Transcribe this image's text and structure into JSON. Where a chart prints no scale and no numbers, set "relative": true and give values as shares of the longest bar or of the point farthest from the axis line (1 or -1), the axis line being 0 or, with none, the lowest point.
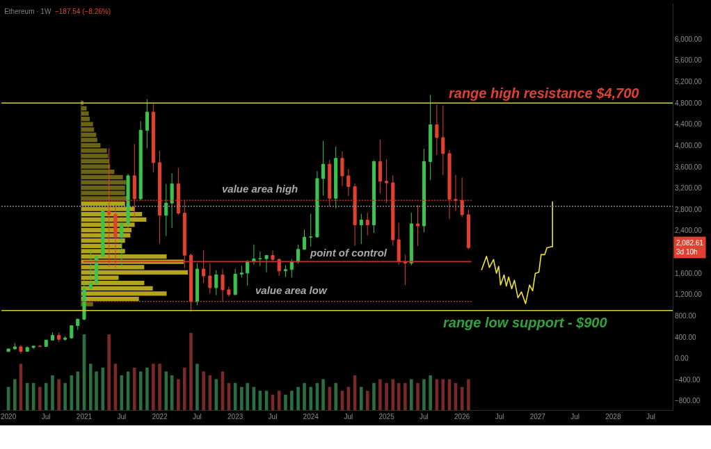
{
  "chart_data": [
    {
      "type": "candlestick",
      "title": "Ethereum · 1W",
      "subtitle": "−187.54 (−8.26%)",
      "x": [
        "2020-01",
        "2020-02",
        "2020-03",
        "2020-04",
        "2020-05",
        "2020-06",
        "2020-07",
        "2020-08",
        "2020-09",
        "2020-10",
        "2020-11",
        "2020-12",
        "2021-01",
        "2021-02",
        "2021-03",
        "2021-04",
        "2021-05",
        "2021-06",
        "2021-07",
        "2021-08",
        "2021-09",
        "2021-10",
        "2021-11",
        "2021-12",
        "2022-01",
        "2022-02",
        "2022-03",
        "2022-04",
        "2022-05",
        "2022-06",
        "2022-07",
        "2022-08",
        "2022-09",
        "2022-10",
        "2022-11",
        "2022-12",
        "2023-01",
        "2023-02",
        "2023-03",
        "2023-04",
        "2023-05",
        "2023-06",
        "2023-07",
        "2023-08",
        "2023-09",
        "2023-10",
        "2023-11",
        "2023-12",
        "2024-01",
        "2024-02",
        "2024-03",
        "2024-04",
        "2024-05",
        "2024-06",
        "2024-07",
        "2024-08",
        "2024-09",
        "2024-10",
        "2024-11",
        "2024-12",
        "2025-01",
        "2025-02",
        "2025-03",
        "2025-04",
        "2025-05",
        "2025-06",
        "2025-07",
        "2025-08",
        "2025-09",
        "2025-10",
        "2025-11",
        "2025-12",
        "2026-01",
        "2026-02"
      ],
      "ohlc": [
        [
          129,
          180,
          127,
          179
        ],
        [
          179,
          288,
          176,
          218
        ],
        [
          218,
          253,
          90,
          133
        ],
        [
          133,
          227,
          130,
          206
        ],
        [
          206,
          247,
          176,
          231
        ],
        [
          231,
          253,
          216,
          226
        ],
        [
          226,
          349,
          223,
          346
        ],
        [
          346,
          488,
          335,
          434
        ],
        [
          434,
          488,
          308,
          359
        ],
        [
          359,
          420,
          334,
          386
        ],
        [
          386,
          622,
          370,
          616
        ],
        [
          616,
          750,
          535,
          737
        ],
        [
          737,
          1476,
          715,
          1314
        ],
        [
          1314,
          2040,
          1275,
          1418
        ],
        [
          1418,
          1944,
          1400,
          1918
        ],
        [
          1918,
          2797,
          1900,
          2773
        ],
        [
          2773,
          3950,
          1720,
          2706
        ],
        [
          2706,
          2890,
          1700,
          2275
        ],
        [
          2275,
          2551,
          1719,
          2536
        ],
        [
          2536,
          3470,
          2450,
          3433
        ],
        [
          3433,
          4030,
          2652,
          3000
        ],
        [
          3000,
          4460,
          2970,
          4288
        ],
        [
          4288,
          4870,
          3950,
          4630
        ],
        [
          4630,
          4780,
          3500,
          3680
        ],
        [
          3680,
          3900,
          2160,
          2690
        ],
        [
          2690,
          3280,
          2300,
          2920
        ],
        [
          2920,
          3480,
          2450,
          3280
        ],
        [
          3280,
          3580,
          2700,
          2730
        ],
        [
          2730,
          2960,
          1700,
          1940
        ],
        [
          1940,
          1970,
          880,
          1070
        ],
        [
          1070,
          1790,
          1000,
          1680
        ],
        [
          1680,
          2030,
          1420,
          1550
        ],
        [
          1550,
          1790,
          1220,
          1330
        ],
        [
          1330,
          1660,
          1190,
          1570
        ],
        [
          1570,
          1680,
          1070,
          1290
        ],
        [
          1290,
          1350,
          1160,
          1200
        ],
        [
          1200,
          1680,
          1190,
          1585
        ],
        [
          1585,
          1740,
          1520,
          1605
        ],
        [
          1605,
          1845,
          1370,
          1820
        ],
        [
          1820,
          2140,
          1760,
          1870
        ],
        [
          1870,
          2010,
          1740,
          1875
        ],
        [
          1875,
          1940,
          1620,
          1935
        ],
        [
          1935,
          2030,
          1820,
          1860
        ],
        [
          1860,
          1880,
          1550,
          1645
        ],
        [
          1645,
          1750,
          1530,
          1670
        ],
        [
          1670,
          1865,
          1520,
          1815
        ],
        [
          1815,
          2140,
          1780,
          2050
        ],
        [
          2050,
          2420,
          2040,
          2280
        ],
        [
          2280,
          2720,
          2100,
          2283
        ],
        [
          2283,
          3520,
          2270,
          3380
        ],
        [
          3380,
          4090,
          3060,
          3650
        ],
        [
          3650,
          3730,
          2850,
          3010
        ],
        [
          3010,
          3980,
          2820,
          3760
        ],
        [
          3760,
          3890,
          3240,
          3430
        ],
        [
          3430,
          3560,
          3050,
          3230
        ],
        [
          3230,
          3290,
          2120,
          2510
        ],
        [
          2510,
          2720,
          2150,
          2600
        ],
        [
          2600,
          2740,
          2310,
          2510
        ],
        [
          2510,
          3720,
          2360,
          3700
        ],
        [
          3700,
          4110,
          3100,
          3330
        ],
        [
          3330,
          3740,
          2920,
          3300
        ],
        [
          3300,
          3440,
          2120,
          2230
        ],
        [
          2230,
          2550,
          1760,
          1820
        ],
        [
          1820,
          1950,
          1380,
          1790
        ],
        [
          1790,
          2740,
          1750,
          2530
        ],
        [
          2530,
          2880,
          2110,
          2490
        ],
        [
          2490,
          3940,
          2370,
          3700
        ],
        [
          3700,
          4950,
          3350,
          4390
        ],
        [
          4390,
          4770,
          3820,
          4150
        ],
        [
          4150,
          4750,
          3440,
          3850
        ],
        [
          3850,
          3920,
          2620,
          2990
        ],
        [
          2990,
          3450,
          2770,
          2970
        ],
        [
          2970,
          3400,
          2650,
          2700
        ],
        [
          2700,
          2800,
          2050,
          2082.61
        ]
      ],
      "colors": [
        "#3cc24f",
        "#3cc24f",
        "#e2412f",
        "#3cc24f",
        "#3cc24f",
        "#e2412f",
        "#3cc24f",
        "#3cc24f",
        "#e2412f",
        "#3cc24f",
        "#3cc24f",
        "#3cc24f",
        "#3cc24f",
        "#3cc24f",
        "#3cc24f",
        "#3cc24f",
        "#e2412f",
        "#e2412f",
        "#3cc24f",
        "#3cc24f",
        "#e2412f",
        "#3cc24f",
        "#3cc24f",
        "#e2412f",
        "#e2412f",
        "#3cc24f",
        "#3cc24f",
        "#e2412f",
        "#e2412f",
        "#e2412f",
        "#3cc24f",
        "#e2412f",
        "#e2412f",
        "#3cc24f",
        "#e2412f",
        "#e2412f",
        "#3cc24f",
        "#3cc24f",
        "#3cc24f",
        "#3cc24f",
        "#3cc24f",
        "#3cc24f",
        "#e2412f",
        "#e2412f",
        "#3cc24f",
        "#3cc24f",
        "#3cc24f",
        "#3cc24f",
        "#3cc24f",
        "#3cc24f",
        "#3cc24f",
        "#e2412f",
        "#3cc24f",
        "#e2412f",
        "#e2412f",
        "#e2412f",
        "#3cc24f",
        "#e2412f",
        "#3cc24f",
        "#e2412f",
        "#e2412f",
        "#e2412f",
        "#e2412f",
        "#e2412f",
        "#3cc24f",
        "#e2412f",
        "#3cc24f",
        "#3cc24f",
        "#e2412f",
        "#e2412f",
        "#e2412f",
        "#e2412f",
        "#e2412f",
        "#e2412f"
      ],
      "xlim": [
        "2019-11-28",
        "2028-10-15"
      ],
      "ylim": [
        -970,
        6670
      ],
      "xticks": [
        {
          "value": "2020-01",
          "label": "2020"
        },
        {
          "value": "2020-07",
          "label": "Jul"
        },
        {
          "value": "2021-01",
          "label": "2021"
        },
        {
          "value": "2021-07",
          "label": "Jul"
        },
        {
          "value": "2022-01",
          "label": "2022"
        },
        {
          "value": "2022-07",
          "label": "Jul"
        },
        {
          "value": "2023-01",
          "label": "2023"
        },
        {
          "value": "2023-07",
          "label": "Jul"
        },
        {
          "value": "2024-01",
          "label": "2024"
        },
        {
          "value": "2024-07",
          "label": "Jul"
        },
        {
          "value": "2025-01",
          "label": "2025"
        },
        {
          "value": "2025-07",
          "label": "Jul"
        },
        {
          "value": "2026-01",
          "label": "2026"
        },
        {
          "value": "2026-07",
          "label": "Jul"
        },
        {
          "value": "2027-01",
          "label": "2027"
        },
        {
          "value": "2027-07",
          "label": "Jul"
        },
        {
          "value": "2028-01",
          "label": "2028"
        },
        {
          "value": "2028-07",
          "label": "Jul"
        }
      ],
      "yticks": [
        {
          "value": 6000,
          "label": "6,000.00"
        },
        {
          "value": 5600,
          "label": "5,600.00"
        },
        {
          "value": 5200,
          "label": "5,200.00"
        },
        {
          "value": 4800,
          "label": "4,800.00"
        },
        {
          "value": 4400,
          "label": "4,400.00"
        },
        {
          "value": 4000,
          "label": "4,000.00"
        },
        {
          "value": 3600,
          "label": "3,600.00"
        },
        {
          "value": 3200,
          "label": "3,200.00"
        },
        {
          "value": 2800,
          "label": "2,800.00"
        },
        {
          "value": 2400,
          "label": "2,400.00"
        },
        {
          "value": 1600,
          "label": "1,600.00"
        },
        {
          "value": 1200,
          "label": "1,200.00"
        },
        {
          "value": 800,
          "label": "800.00"
        },
        {
          "value": 400,
          "label": "400.00"
        },
        {
          "value": 0,
          "label": "0.00"
        },
        {
          "value": -400,
          "label": "−400.00"
        },
        {
          "value": -800,
          "label": "−800.00"
        }
      ],
      "series": [
        {
          "type": "line",
          "x": [
            "2020-12-28",
            "2026-02-15"
          ],
          "values": [
            2970,
            2970
          ],
          "color": "#c4332b",
          "line_style": "dotted"
        },
        {
          "type": "line",
          "x": [
            "2020-12-28",
            "2026-02-15"
          ],
          "values": [
            1820,
            1820
          ],
          "color": "#c4332b"
        },
        {
          "type": "line",
          "x": [
            "2020-12-28",
            "2026-02-15"
          ],
          "values": [
            1070,
            1070
          ],
          "color": "#c4332b",
          "line_style": "dotted"
        },
        {
          "type": "line",
          "x": [
            "2026-04-05",
            "2026-04-29",
            "2026-05-13",
            "2026-06-02",
            "2026-06-16",
            "2026-06-27",
            "2026-07-06",
            "2026-07-23",
            "2026-08-03",
            "2026-08-14",
            "2026-08-29",
            "2026-09-11",
            "2026-09-28",
            "2026-10-15",
            "2026-11-04",
            "2026-11-23",
            "2026-12-08",
            "2026-12-21",
            "2027-01-07",
            "2027-01-18",
            "2027-02-04",
            "2027-02-15",
            "2027-03-08",
            "2027-03-14",
            "2027-03-14"
          ],
          "values": [
            1660,
            1920,
            1710,
            1860,
            1600,
            1730,
            1380,
            1570,
            1360,
            1530,
            1310,
            1470,
            1140,
            1250,
            1030,
            1380,
            1270,
            1600,
            1620,
            1950,
            1950,
            2080,
            2100,
            2100,
            2950
          ],
          "color": "#efe236"
        }
      ],
      "ref_lines": [
        {
          "axis": "y",
          "value": 4800,
          "color": "#d6cc4a"
        },
        {
          "axis": "y",
          "value": 900,
          "color": "#d6cc4a"
        },
        {
          "axis": "y",
          "value": 2860,
          "color": "#8a8a8a",
          "line_style": "dotted"
        }
      ],
      "annotations": [
        {
          "text": "range high resistance $4,700",
          "x": "2027-02",
          "y": 4800
        },
        {
          "text": "value area high",
          "x": "2023-05",
          "y": 2970
        },
        {
          "text": "point of control",
          "x": "2024-07",
          "y": 1820
        },
        {
          "text": "value area low",
          "x": "2023-10",
          "y": 1070
        },
        {
          "text": "range low support - $900",
          "x": "2026-11",
          "y": 900
        },
        "2,082.61\n3d 10h"
      ]
    },
    {
      "type": "bar",
      "relative": true,
      "x": [
        "2020-01",
        "2020-02",
        "2020-03",
        "2020-04",
        "2020-05",
        "2020-06",
        "2020-07",
        "2020-08",
        "2020-09",
        "2020-10",
        "2020-11",
        "2020-12",
        "2021-01",
        "2021-02",
        "2021-03",
        "2021-04",
        "2021-05",
        "2021-06",
        "2021-07",
        "2021-08",
        "2021-09",
        "2021-10",
        "2021-11",
        "2021-12",
        "2022-01",
        "2022-02",
        "2022-03",
        "2022-04",
        "2022-05",
        "2022-06",
        "2022-07",
        "2022-08",
        "2022-09",
        "2022-10",
        "2022-11",
        "2022-12",
        "2023-01",
        "2023-02",
        "2023-03",
        "2023-04",
        "2023-05",
        "2023-06",
        "2023-07",
        "2023-08",
        "2023-09",
        "2023-10",
        "2023-11",
        "2023-12",
        "2024-01",
        "2024-02",
        "2024-03",
        "2024-04",
        "2024-05",
        "2024-06",
        "2024-07",
        "2024-08",
        "2024-09",
        "2024-10",
        "2024-11",
        "2024-12",
        "2025-01",
        "2025-02",
        "2025-03",
        "2025-04",
        "2025-05",
        "2025-06",
        "2025-07",
        "2025-08",
        "2025-09",
        "2025-10",
        "2025-11",
        "2025-12",
        "2026-01",
        "2026-02"
      ],
      "values": [
        0.3,
        0.4,
        0.6,
        0.35,
        0.35,
        0.3,
        0.35,
        0.45,
        0.4,
        0.35,
        0.45,
        0.5,
        0.98,
        0.6,
        0.5,
        0.55,
        0.98,
        0.6,
        0.45,
        0.5,
        0.55,
        0.5,
        0.55,
        0.6,
        0.6,
        0.5,
        0.45,
        0.4,
        0.55,
        1,
        0.6,
        0.5,
        0.45,
        0.4,
        0.5,
        0.35,
        0.35,
        0.3,
        0.35,
        0.3,
        0.25,
        0.25,
        0.2,
        0.25,
        0.2,
        0.25,
        0.3,
        0.35,
        0.3,
        0.35,
        0.4,
        0.3,
        0.35,
        0.25,
        0.3,
        0.45,
        0.3,
        0.25,
        0.35,
        0.4,
        0.35,
        0.4,
        0.35,
        0.35,
        0.4,
        0.35,
        0.4,
        0.45,
        0.4,
        0.4,
        0.4,
        0.35,
        0.3,
        0.4
      ],
      "colors": [
        "#2b6e3f",
        "#2b6e3f",
        "#7a2828",
        "#2b6e3f",
        "#2b6e3f",
        "#7a2828",
        "#2b6e3f",
        "#2b6e3f",
        "#7a2828",
        "#2b6e3f",
        "#2b6e3f",
        "#2b6e3f",
        "#2b6e3f",
        "#2b6e3f",
        "#2b6e3f",
        "#2b6e3f",
        "#7a2828",
        "#7a2828",
        "#2b6e3f",
        "#2b6e3f",
        "#7a2828",
        "#2b6e3f",
        "#2b6e3f",
        "#7a2828",
        "#7a2828",
        "#2b6e3f",
        "#2b6e3f",
        "#7a2828",
        "#7a2828",
        "#7a2828",
        "#2b6e3f",
        "#7a2828",
        "#7a2828",
        "#2b6e3f",
        "#7a2828",
        "#7a2828",
        "#2b6e3f",
        "#2b6e3f",
        "#2b6e3f",
        "#2b6e3f",
        "#2b6e3f",
        "#2b6e3f",
        "#7a2828",
        "#7a2828",
        "#2b6e3f",
        "#2b6e3f",
        "#2b6e3f",
        "#2b6e3f",
        "#2b6e3f",
        "#2b6e3f",
        "#2b6e3f",
        "#7a2828",
        "#2b6e3f",
        "#7a2828",
        "#7a2828",
        "#7a2828",
        "#2b6e3f",
        "#7a2828",
        "#2b6e3f",
        "#7a2828",
        "#7a2828",
        "#7a2828",
        "#7a2828",
        "#7a2828",
        "#2b6e3f",
        "#7a2828",
        "#2b6e3f",
        "#2b6e3f",
        "#7a2828",
        "#7a2828",
        "#7a2828",
        "#7a2828",
        "#7a2828",
        "#7a2828"
      ],
      "xlim": [
        "2019-11-28",
        "2028-10-15"
      ],
      "tick_labels": false
    },
    {
      "type": "bar",
      "orientation": "horizontal",
      "relative": true,
      "categories": [
        null,
        null,
        null,
        null,
        null,
        null,
        null,
        null,
        null,
        null,
        null,
        null,
        null,
        null,
        null,
        null,
        null,
        null,
        null,
        null,
        null,
        null,
        null,
        null,
        null,
        null,
        null,
        null,
        null,
        null,
        null,
        null,
        null,
        null,
        null,
        null,
        null,
        null,
        null
      ],
      "values": [
        0.02,
        0.05,
        0.07,
        0.08,
        0.11,
        0.12,
        0.14,
        0.15,
        0.18,
        0.24,
        0.25,
        0.26,
        0.27,
        0.31,
        0.39,
        0.42,
        0.41,
        0.41,
        0.44,
        0.41,
        0.5,
        0.57,
        0.61,
        0.5,
        0.47,
        0.46,
        0.41,
        0.38,
        0.41,
        0.8,
        0.96,
        0.59,
        1,
        0.35,
        0.59,
        0.67,
        0.8,
        0.54,
        0.11
      ],
      "colors": [
        "#6b6418",
        "#6b6418",
        "#6b6418",
        "#6b6418",
        "#6b6418",
        "#6b6418",
        "#6b6418",
        "#6b6418",
        "#6b6418",
        "#6b6418",
        "#6b6418",
        "#6b6418",
        "#6b6418",
        "#6b6418",
        "#6b6418",
        "#6b6418",
        "#6b6418",
        "#6b6418",
        "#6b6418",
        "#b3a31d",
        "#b3a31d",
        "#b3a31d",
        "#b3a31d",
        "#b3a31d",
        "#b3a31d",
        "#b3a31d",
        "#b3a31d",
        "#b3a31d",
        "#b3a31d",
        "#b3a31d",
        "#b3a31d",
        "#b3a31d",
        "#b3a31d",
        "#b3a31d",
        "#b3a31d",
        "#b3a31d",
        "#b3a31d",
        "#b3a31d",
        "#6b6418"
      ],
      "tick_labels": false
    }
  ]
}
